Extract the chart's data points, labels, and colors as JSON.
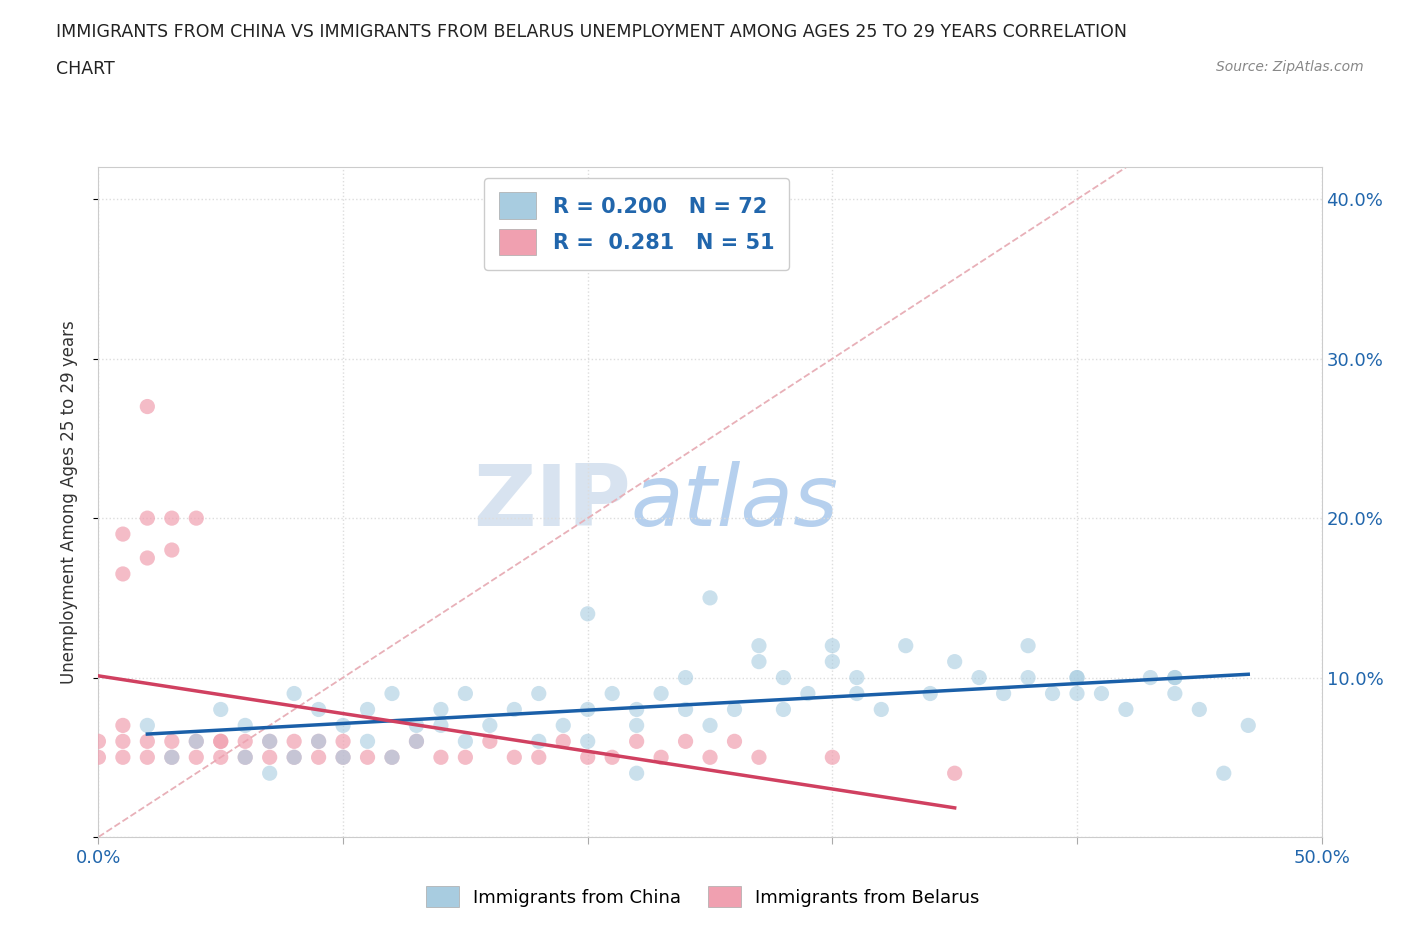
{
  "title_line1": "IMMIGRANTS FROM CHINA VS IMMIGRANTS FROM BELARUS UNEMPLOYMENT AMONG AGES 25 TO 29 YEARS CORRELATION",
  "title_line2": "CHART",
  "source_text": "Source: ZipAtlas.com",
  "ylabel": "Unemployment Among Ages 25 to 29 years",
  "xlim": [
    0.0,
    0.5
  ],
  "ylim": [
    0.0,
    0.42
  ],
  "xticks": [
    0.0,
    0.1,
    0.2,
    0.3,
    0.4,
    0.5
  ],
  "xticklabels": [
    "0.0%",
    "",
    "",
    "",
    "",
    "50.0%"
  ],
  "yticks": [
    0.0,
    0.1,
    0.2,
    0.3,
    0.4
  ],
  "yticklabels_right": [
    "",
    "10.0%",
    "20.0%",
    "30.0%",
    "40.0%"
  ],
  "china_color": "#a8cce0",
  "belarus_color": "#f0a0b0",
  "china_trend_color": "#1a5fa8",
  "belarus_trend_color": "#d04060",
  "diagonal_color": "#e8b0b8",
  "watermark_zip": "ZIP",
  "watermark_atlas": "atlas",
  "legend_R_china": "0.200",
  "legend_N_china": "72",
  "legend_R_belarus": "0.281",
  "legend_N_belarus": "51",
  "legend_text_color": "#2166ac",
  "china_scatter_x": [
    0.02,
    0.03,
    0.04,
    0.05,
    0.06,
    0.06,
    0.07,
    0.07,
    0.08,
    0.08,
    0.09,
    0.09,
    0.1,
    0.1,
    0.11,
    0.11,
    0.12,
    0.12,
    0.13,
    0.13,
    0.14,
    0.14,
    0.15,
    0.15,
    0.16,
    0.17,
    0.18,
    0.18,
    0.19,
    0.2,
    0.2,
    0.2,
    0.21,
    0.22,
    0.22,
    0.22,
    0.23,
    0.24,
    0.24,
    0.25,
    0.25,
    0.26,
    0.27,
    0.27,
    0.28,
    0.28,
    0.29,
    0.3,
    0.3,
    0.31,
    0.31,
    0.32,
    0.33,
    0.34,
    0.35,
    0.36,
    0.37,
    0.38,
    0.38,
    0.39,
    0.4,
    0.4,
    0.41,
    0.42,
    0.43,
    0.44,
    0.44,
    0.45,
    0.46,
    0.47,
    0.4,
    0.44
  ],
  "china_scatter_y": [
    0.07,
    0.05,
    0.06,
    0.08,
    0.07,
    0.05,
    0.06,
    0.04,
    0.09,
    0.05,
    0.08,
    0.06,
    0.07,
    0.05,
    0.08,
    0.06,
    0.09,
    0.05,
    0.07,
    0.06,
    0.08,
    0.07,
    0.09,
    0.06,
    0.07,
    0.08,
    0.09,
    0.06,
    0.07,
    0.14,
    0.08,
    0.06,
    0.09,
    0.08,
    0.07,
    0.04,
    0.09,
    0.08,
    0.1,
    0.15,
    0.07,
    0.08,
    0.12,
    0.11,
    0.1,
    0.08,
    0.09,
    0.12,
    0.11,
    0.1,
    0.09,
    0.08,
    0.12,
    0.09,
    0.11,
    0.1,
    0.09,
    0.1,
    0.12,
    0.09,
    0.1,
    0.09,
    0.09,
    0.08,
    0.1,
    0.09,
    0.1,
    0.08,
    0.04,
    0.07,
    0.1,
    0.1
  ],
  "belarus_scatter_x": [
    0.0,
    0.0,
    0.01,
    0.01,
    0.01,
    0.01,
    0.01,
    0.02,
    0.02,
    0.02,
    0.02,
    0.02,
    0.03,
    0.03,
    0.03,
    0.03,
    0.04,
    0.04,
    0.04,
    0.05,
    0.05,
    0.05,
    0.06,
    0.06,
    0.07,
    0.07,
    0.08,
    0.08,
    0.09,
    0.09,
    0.1,
    0.1,
    0.11,
    0.12,
    0.13,
    0.14,
    0.15,
    0.16,
    0.17,
    0.18,
    0.19,
    0.2,
    0.21,
    0.22,
    0.23,
    0.24,
    0.25,
    0.26,
    0.27,
    0.3,
    0.35
  ],
  "belarus_scatter_y": [
    0.05,
    0.06,
    0.07,
    0.05,
    0.06,
    0.165,
    0.19,
    0.06,
    0.05,
    0.2,
    0.175,
    0.27,
    0.06,
    0.05,
    0.2,
    0.18,
    0.06,
    0.05,
    0.2,
    0.05,
    0.06,
    0.06,
    0.06,
    0.05,
    0.06,
    0.05,
    0.05,
    0.06,
    0.05,
    0.06,
    0.05,
    0.06,
    0.05,
    0.05,
    0.06,
    0.05,
    0.05,
    0.06,
    0.05,
    0.05,
    0.06,
    0.05,
    0.05,
    0.06,
    0.05,
    0.06,
    0.05,
    0.06,
    0.05,
    0.05,
    0.04
  ]
}
